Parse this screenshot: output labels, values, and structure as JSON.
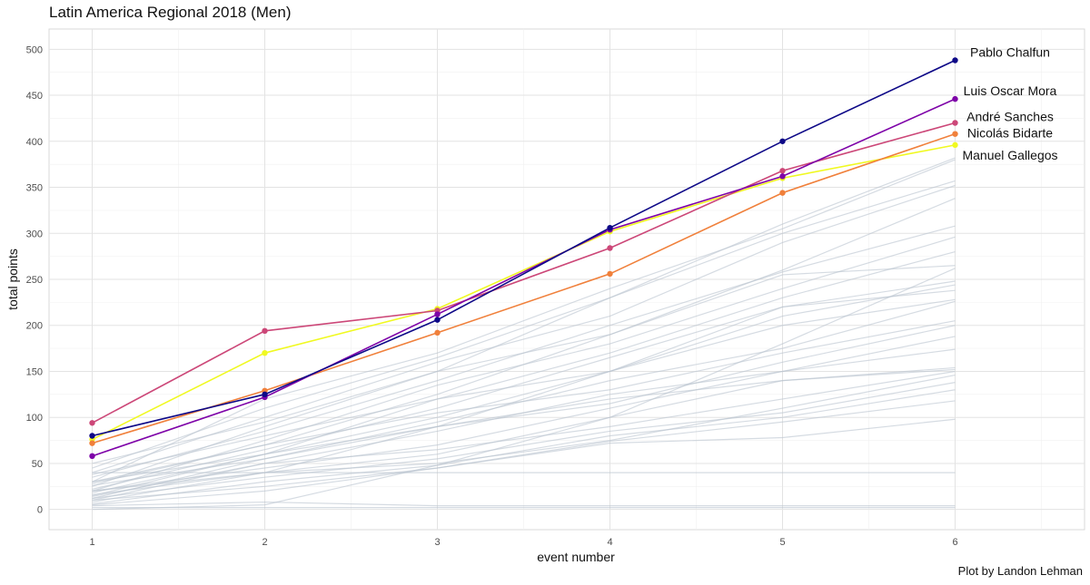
{
  "chart_data": {
    "type": "line",
    "title": "Latin America Regional 2018 (Men)",
    "caption": "Plot by Landon Lehman",
    "xlabel": "event number",
    "ylabel": "total points",
    "x": [
      1,
      2,
      3,
      4,
      5,
      6
    ],
    "xlim": [
      0.75,
      6.75
    ],
    "ylim": [
      -22,
      522
    ],
    "y_ticks": [
      0,
      50,
      100,
      150,
      200,
      250,
      300,
      350,
      400,
      450,
      500
    ],
    "grid": true,
    "highlighted_series": [
      {
        "name": "Pablo Chalfun",
        "color": "#0d0887",
        "values": [
          80,
          125,
          206,
          306,
          400,
          488
        ]
      },
      {
        "name": "Luis Oscar Mora",
        "color": "#7e03a8",
        "values": [
          58,
          122,
          212,
          304,
          362,
          446
        ]
      },
      {
        "name": "André Sanches",
        "color": "#cc4778",
        "values": [
          94,
          194,
          216,
          284,
          368,
          420
        ]
      },
      {
        "name": "Nicolás Bidarte",
        "color": "#f0803b",
        "values": [
          72,
          129,
          192,
          256,
          344,
          408
        ]
      },
      {
        "name": "Manuel Gallegos",
        "color": "#f0f921",
        "values": [
          76,
          170,
          218,
          302,
          360,
          396
        ]
      }
    ],
    "background_series_color": "#b9c3cf",
    "background_series": [
      [
        30,
        120,
        170,
        240,
        305,
        380
      ],
      [
        45,
        110,
        165,
        230,
        300,
        357
      ],
      [
        40,
        100,
        160,
        210,
        290,
        352
      ],
      [
        25,
        90,
        150,
        230,
        310,
        382
      ],
      [
        50,
        95,
        150,
        190,
        260,
        338
      ],
      [
        35,
        85,
        140,
        200,
        258,
        308
      ],
      [
        20,
        75,
        135,
        180,
        240,
        296
      ],
      [
        38,
        80,
        120,
        170,
        230,
        280
      ],
      [
        28,
        70,
        125,
        190,
        255,
        265
      ],
      [
        22,
        65,
        110,
        165,
        220,
        248
      ],
      [
        18,
        60,
        120,
        150,
        210,
        244
      ],
      [
        15,
        60,
        100,
        150,
        200,
        228
      ],
      [
        12,
        55,
        95,
        140,
        175,
        226
      ],
      [
        30,
        70,
        105,
        130,
        170,
        205
      ],
      [
        26,
        55,
        90,
        115,
        160,
        200
      ],
      [
        10,
        50,
        85,
        125,
        150,
        188
      ],
      [
        20,
        45,
        70,
        110,
        150,
        174
      ],
      [
        16,
        40,
        60,
        100,
        140,
        154
      ],
      [
        14,
        50,
        65,
        90,
        120,
        150
      ],
      [
        8,
        40,
        50,
        75,
        110,
        146
      ],
      [
        12,
        35,
        55,
        85,
        105,
        138
      ],
      [
        6,
        30,
        48,
        80,
        100,
        130
      ],
      [
        10,
        25,
        45,
        74,
        95,
        118
      ],
      [
        5,
        20,
        45,
        72,
        78,
        98
      ],
      [
        40,
        40,
        40,
        40,
        40,
        40
      ],
      [
        4,
        8,
        4,
        4,
        4,
        4
      ],
      [
        2,
        2,
        2,
        2,
        2,
        2
      ],
      [
        0,
        5,
        48,
        100,
        180,
        262
      ],
      [
        20,
        40,
        90,
        150,
        220,
        238
      ],
      [
        30,
        60,
        90,
        120,
        140,
        152
      ]
    ]
  }
}
